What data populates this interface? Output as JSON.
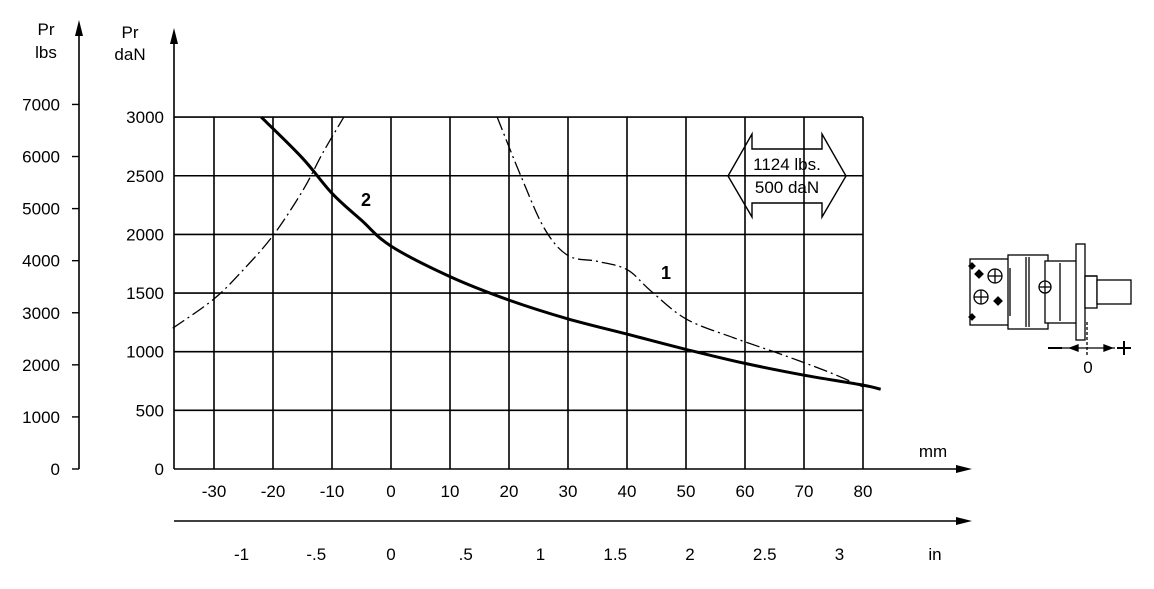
{
  "chart_data": {
    "type": "line",
    "axes": {
      "left_outer": {
        "label_line1": "Pr",
        "label_line2": "lbs",
        "ticks": [
          "0",
          "1000",
          "2000",
          "3000",
          "4000",
          "5000",
          "6000",
          "7000"
        ],
        "tick_values": [
          0,
          1000,
          2000,
          3000,
          4000,
          5000,
          6000,
          7000
        ]
      },
      "left_inner": {
        "label_line1": "Pr",
        "label_line2": "daN",
        "ticks": [
          "0",
          "500",
          "1000",
          "1500",
          "2000",
          "2500",
          "3000"
        ],
        "tick_values": [
          0,
          500,
          1000,
          1500,
          2000,
          2500,
          3000
        ]
      },
      "bottom_mm": {
        "label": "mm",
        "ticks": [
          "-30",
          "-20",
          "-10",
          "0",
          "10",
          "20",
          "30",
          "40",
          "50",
          "60",
          "70",
          "80"
        ],
        "tick_values": [
          -30,
          -20,
          -10,
          0,
          10,
          20,
          30,
          40,
          50,
          60,
          70,
          80
        ]
      },
      "bottom_in": {
        "label": "in",
        "ticks": [
          "-1",
          "-.5",
          "0",
          ".5",
          "1",
          "1.5",
          "2",
          "2.5",
          "3"
        ],
        "tick_values": [
          -1,
          -0.5,
          0,
          0.5,
          1,
          1.5,
          2,
          2.5,
          3
        ]
      }
    },
    "xlim": [
      -37,
      80
    ],
    "ylim": [
      0,
      3000
    ],
    "grid": true,
    "series": [
      {
        "id": "1",
        "label": "1",
        "style": "dash-dot",
        "x": [
          -37,
          -30,
          -25,
          -20,
          -15,
          -11.5,
          -8,
          18,
          22,
          26,
          30,
          35,
          40,
          44,
          50,
          58,
          66,
          74,
          80
        ],
        "y": [
          1200,
          1450,
          1700,
          1990,
          2370,
          2700,
          3000,
          3000,
          2500,
          2050,
          1820,
          1770,
          1700,
          1520,
          1280,
          1120,
          980,
          830,
          700
        ]
      },
      {
        "id": "2",
        "label": "2",
        "style": "solid",
        "x": [
          -22,
          -15,
          -10,
          -5,
          0,
          10,
          20,
          30,
          40,
          50,
          60,
          70,
          80,
          83
        ],
        "y": [
          3000,
          2650,
          2350,
          2120,
          1900,
          1640,
          1440,
          1280,
          1150,
          1020,
          900,
          800,
          715,
          680
        ]
      }
    ],
    "annotation_box": {
      "line1": "1124 lbs.",
      "line2": "500 daN"
    },
    "legend_labels": {
      "curve1": "1",
      "curve2": "2"
    }
  },
  "diagram": {
    "zero_label": "0",
    "minus_sign": "−",
    "plus_sign": "+"
  }
}
